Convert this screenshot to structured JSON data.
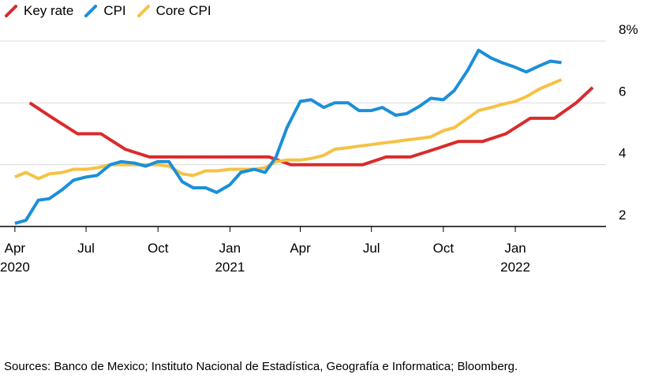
{
  "source_note": "Sources: Banco de Mexico; Instituto Nacional de Estadística, Geografía e Informatica; Bloomberg.",
  "chart_data": {
    "type": "line",
    "title": "",
    "xlabel": "",
    "ylabel": "",
    "ylim": [
      1.6,
      8.3
    ],
    "y_unit": "%",
    "x_range": [
      "2020-04",
      "2022-04"
    ],
    "y_ticks": [
      2,
      4,
      6,
      8
    ],
    "y_tick_labels": [
      "2",
      "4",
      "6",
      "8%"
    ],
    "x_ticks": [
      {
        "date": "2020-04",
        "label": "Apr",
        "year": "2020"
      },
      {
        "date": "2020-07",
        "label": "Jul",
        "year": ""
      },
      {
        "date": "2020-10",
        "label": "Oct",
        "year": ""
      },
      {
        "date": "2021-01",
        "label": "Jan",
        "year": "2021"
      },
      {
        "date": "2021-04",
        "label": "Apr",
        "year": ""
      },
      {
        "date": "2021-07",
        "label": "Jul",
        "year": ""
      },
      {
        "date": "2021-10",
        "label": "Oct",
        "year": ""
      },
      {
        "date": "2022-01",
        "label": "Jan",
        "year": "2022"
      }
    ],
    "grid": true,
    "legend_position": "top-left",
    "series": [
      {
        "name": "Key rate",
        "color": "#d92b2b",
        "points": [
          [
            "2020-04-20",
            6.0
          ],
          [
            "2020-05-20",
            5.5
          ],
          [
            "2020-06-20",
            5.0
          ],
          [
            "2020-07-20",
            5.0
          ],
          [
            "2020-08-20",
            4.5
          ],
          [
            "2020-09-20",
            4.25
          ],
          [
            "2020-10-20",
            4.25
          ],
          [
            "2020-11-20",
            4.25
          ],
          [
            "2020-12-20",
            4.25
          ],
          [
            "2021-01-20",
            4.25
          ],
          [
            "2021-02-20",
            4.25
          ],
          [
            "2021-03-20",
            4.0
          ],
          [
            "2021-04-20",
            4.0
          ],
          [
            "2021-05-20",
            4.0
          ],
          [
            "2021-06-20",
            4.0
          ],
          [
            "2021-07-20",
            4.25
          ],
          [
            "2021-08-20",
            4.25
          ],
          [
            "2021-09-20",
            4.5
          ],
          [
            "2021-10-20",
            4.75
          ],
          [
            "2021-11-20",
            4.75
          ],
          [
            "2021-12-20",
            5.0
          ],
          [
            "2022-01-20",
            5.5
          ],
          [
            "2022-02-20",
            5.5
          ],
          [
            "2022-03-20",
            6.0
          ],
          [
            "2022-04-10",
            6.5
          ]
        ]
      },
      {
        "name": "CPI",
        "color": "#1b8fd9",
        "points": [
          [
            "2020-04-01",
            2.1
          ],
          [
            "2020-04-15",
            2.2
          ],
          [
            "2020-05-01",
            2.85
          ],
          [
            "2020-05-15",
            2.9
          ],
          [
            "2020-06-01",
            3.2
          ],
          [
            "2020-06-15",
            3.5
          ],
          [
            "2020-07-01",
            3.6
          ],
          [
            "2020-07-15",
            3.65
          ],
          [
            "2020-08-01",
            4.0
          ],
          [
            "2020-08-15",
            4.1
          ],
          [
            "2020-09-01",
            4.05
          ],
          [
            "2020-09-15",
            3.95
          ],
          [
            "2020-10-01",
            4.1
          ],
          [
            "2020-10-15",
            4.1
          ],
          [
            "2020-11-01",
            3.45
          ],
          [
            "2020-11-15",
            3.25
          ],
          [
            "2020-12-01",
            3.25
          ],
          [
            "2020-12-15",
            3.1
          ],
          [
            "2021-01-01",
            3.35
          ],
          [
            "2021-01-15",
            3.75
          ],
          [
            "2021-02-01",
            3.85
          ],
          [
            "2021-02-15",
            3.75
          ],
          [
            "2021-03-01",
            4.25
          ],
          [
            "2021-03-15",
            5.2
          ],
          [
            "2021-04-01",
            6.05
          ],
          [
            "2021-04-15",
            6.1
          ],
          [
            "2021-05-01",
            5.85
          ],
          [
            "2021-05-15",
            6.0
          ],
          [
            "2021-06-01",
            6.0
          ],
          [
            "2021-06-15",
            5.75
          ],
          [
            "2021-07-01",
            5.75
          ],
          [
            "2021-07-15",
            5.85
          ],
          [
            "2021-08-01",
            5.6
          ],
          [
            "2021-08-15",
            5.65
          ],
          [
            "2021-09-01",
            5.9
          ],
          [
            "2021-09-15",
            6.15
          ],
          [
            "2021-10-01",
            6.1
          ],
          [
            "2021-10-15",
            6.4
          ],
          [
            "2021-11-01",
            7.05
          ],
          [
            "2021-11-15",
            7.7
          ],
          [
            "2021-12-01",
            7.45
          ],
          [
            "2021-12-15",
            7.3
          ],
          [
            "2022-01-01",
            7.15
          ],
          [
            "2022-01-15",
            7.0
          ],
          [
            "2022-02-01",
            7.2
          ],
          [
            "2022-02-15",
            7.35
          ],
          [
            "2022-03-01",
            7.3
          ]
        ]
      },
      {
        "name": "Core CPI",
        "color": "#f6c244",
        "points": [
          [
            "2020-04-01",
            3.6
          ],
          [
            "2020-04-15",
            3.75
          ],
          [
            "2020-05-01",
            3.55
          ],
          [
            "2020-05-15",
            3.7
          ],
          [
            "2020-06-01",
            3.75
          ],
          [
            "2020-06-15",
            3.85
          ],
          [
            "2020-07-01",
            3.85
          ],
          [
            "2020-07-15",
            3.9
          ],
          [
            "2020-08-01",
            4.0
          ],
          [
            "2020-08-15",
            4.0
          ],
          [
            "2020-09-01",
            4.0
          ],
          [
            "2020-09-15",
            4.0
          ],
          [
            "2020-10-01",
            4.0
          ],
          [
            "2020-10-15",
            3.95
          ],
          [
            "2020-11-01",
            3.7
          ],
          [
            "2020-11-15",
            3.65
          ],
          [
            "2020-12-01",
            3.8
          ],
          [
            "2020-12-15",
            3.8
          ],
          [
            "2021-01-01",
            3.85
          ],
          [
            "2021-01-15",
            3.85
          ],
          [
            "2021-02-01",
            3.85
          ],
          [
            "2021-02-15",
            3.9
          ],
          [
            "2021-03-01",
            4.1
          ],
          [
            "2021-03-15",
            4.15
          ],
          [
            "2021-04-01",
            4.15
          ],
          [
            "2021-04-15",
            4.2
          ],
          [
            "2021-05-01",
            4.3
          ],
          [
            "2021-05-15",
            4.5
          ],
          [
            "2021-06-01",
            4.55
          ],
          [
            "2021-06-15",
            4.6
          ],
          [
            "2021-07-01",
            4.65
          ],
          [
            "2021-07-15",
            4.7
          ],
          [
            "2021-08-01",
            4.75
          ],
          [
            "2021-08-15",
            4.8
          ],
          [
            "2021-09-01",
            4.85
          ],
          [
            "2021-09-15",
            4.9
          ],
          [
            "2021-10-01",
            5.1
          ],
          [
            "2021-10-15",
            5.2
          ],
          [
            "2021-11-01",
            5.5
          ],
          [
            "2021-11-15",
            5.75
          ],
          [
            "2021-12-01",
            5.85
          ],
          [
            "2021-12-15",
            5.95
          ],
          [
            "2022-01-01",
            6.05
          ],
          [
            "2022-01-15",
            6.2
          ],
          [
            "2022-02-01",
            6.45
          ],
          [
            "2022-02-15",
            6.6
          ],
          [
            "2022-03-01",
            6.75
          ]
        ]
      }
    ]
  }
}
